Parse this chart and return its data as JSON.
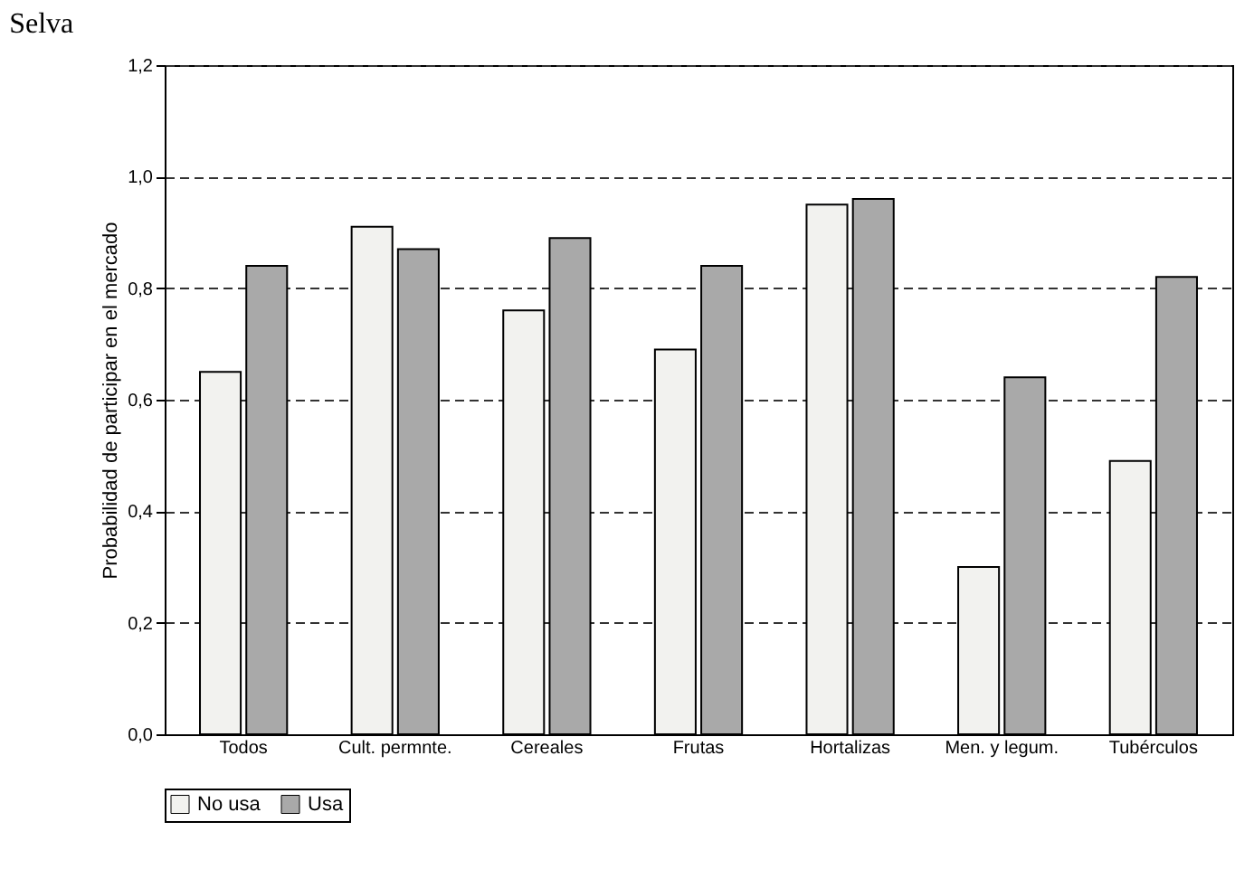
{
  "chart_data": {
    "type": "bar",
    "title": "Selva",
    "ylabel": "Probabilidad de participar en el mercado",
    "categories": [
      "Todos",
      "Cult. permnte.",
      "Cereales",
      "Frutas",
      "Hortalizas",
      "Men. y legum.",
      "Tubérculos"
    ],
    "series": [
      {
        "name": "No usa",
        "color": "#f2f2ef",
        "values": [
          0.65,
          0.91,
          0.76,
          0.69,
          0.95,
          0.3,
          0.49
        ]
      },
      {
        "name": "Usa",
        "color": "#a9a9a9",
        "values": [
          0.84,
          0.87,
          0.89,
          0.84,
          0.96,
          0.64,
          0.82
        ]
      }
    ],
    "ylim": [
      0,
      1.2
    ],
    "yticks": [
      {
        "value": 0,
        "label": "0,0"
      },
      {
        "value": 0.2,
        "label": "0,2"
      },
      {
        "value": 0.4,
        "label": "0,4"
      },
      {
        "value": 0.6,
        "label": "0,6"
      },
      {
        "value": 0.8,
        "label": "0,8"
      },
      {
        "value": 1.0,
        "label": "1,0"
      },
      {
        "value": 1.2,
        "label": "1,2"
      }
    ],
    "grid": "y",
    "legend": "bottom"
  }
}
